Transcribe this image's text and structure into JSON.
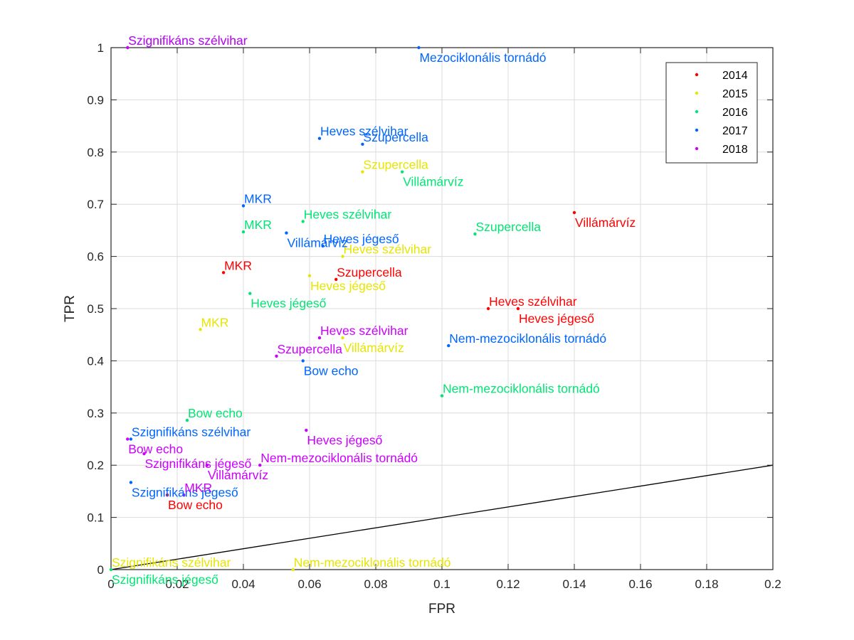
{
  "chart_data": {
    "type": "scatter",
    "title": "",
    "xlabel": "FPR",
    "ylabel": "TPR",
    "xlim": [
      0,
      0.2
    ],
    "ylim": [
      0,
      1
    ],
    "xticks": [
      "0",
      "0.02",
      "0.04",
      "0.06",
      "0.08",
      "0.1",
      "0.12",
      "0.14",
      "0.16",
      "0.18",
      "0.2"
    ],
    "yticks": [
      "0",
      "0.1",
      "0.2",
      "0.3",
      "0.4",
      "0.5",
      "0.6",
      "0.7",
      "0.8",
      "0.9",
      "1"
    ],
    "grid": true,
    "legend_position": "top-right",
    "reference_line": {
      "x": [
        0,
        0.2
      ],
      "y": [
        0,
        0.2
      ],
      "color": "#000000"
    },
    "series": [
      {
        "name": "2014",
        "color": "#ff0000",
        "points": [
          {
            "x": 0.034,
            "y": 0.569,
            "label": "MKR"
          },
          {
            "x": 0.068,
            "y": 0.556,
            "label": "Szupercella"
          },
          {
            "x": 0.14,
            "y": 0.684,
            "label": "Villámárvíz"
          },
          {
            "x": 0.114,
            "y": 0.5,
            "label": "Heves szélvihar"
          },
          {
            "x": 0.123,
            "y": 0.5,
            "label": "Heves jégeső"
          },
          {
            "x": 0.017,
            "y": 0.143,
            "label": "Bow echo"
          }
        ]
      },
      {
        "name": "2015",
        "color": "#e6e600",
        "points": [
          {
            "x": 0.076,
            "y": 0.762,
            "label": "Szupercella"
          },
          {
            "x": 0.06,
            "y": 0.563,
            "label": "Heves jégeső"
          },
          {
            "x": 0.07,
            "y": 0.6,
            "label": "Heves szélvihar"
          },
          {
            "x": 0.027,
            "y": 0.46,
            "label": "MKR"
          },
          {
            "x": 0.07,
            "y": 0.444,
            "label": "Villámárvíz"
          },
          {
            "x": 0.0,
            "y": 0.0,
            "label": "Szignifikáns szélvihar"
          },
          {
            "x": 0.055,
            "y": 0.0,
            "label": "Nem-mezociklonális tornádó"
          }
        ]
      },
      {
        "name": "2016",
        "color": "#00e673",
        "points": [
          {
            "x": 0.005,
            "y": 1.0,
            "label": "Szignifikáns szélvihar"
          },
          {
            "x": 0.088,
            "y": 0.762,
            "label": "Villámárvíz"
          },
          {
            "x": 0.058,
            "y": 0.667,
            "label": "Heves szélvihar"
          },
          {
            "x": 0.04,
            "y": 0.647,
            "label": "MKR"
          },
          {
            "x": 0.11,
            "y": 0.643,
            "label": "Szupercella"
          },
          {
            "x": 0.042,
            "y": 0.529,
            "label": "Heves jégeső"
          },
          {
            "x": 0.1,
            "y": 0.333,
            "label": "Nem-mezociklonális tornádó"
          },
          {
            "x": 0.023,
            "y": 0.286,
            "label": "Bow echo"
          },
          {
            "x": 0.0,
            "y": 0.0,
            "label": "Szignifikáns jégeső"
          }
        ]
      },
      {
        "name": "2017",
        "color": "#0066ff",
        "points": [
          {
            "x": 0.093,
            "y": 1.0,
            "label": "Mezociklonális tornádó"
          },
          {
            "x": 0.063,
            "y": 0.826,
            "label": "Heves szélvihar"
          },
          {
            "x": 0.076,
            "y": 0.815,
            "label": "Szupercella"
          },
          {
            "x": 0.04,
            "y": 0.697,
            "label": "MKR"
          },
          {
            "x": 0.053,
            "y": 0.645,
            "label": "Villámárvíz"
          },
          {
            "x": 0.064,
            "y": 0.62,
            "label": "Heves jégeső"
          },
          {
            "x": 0.102,
            "y": 0.429,
            "label": "Nem-mezociklonális tornádó"
          },
          {
            "x": 0.058,
            "y": 0.4,
            "label": "Bow echo"
          },
          {
            "x": 0.006,
            "y": 0.25,
            "label": "Szignifikáns szélvihar"
          },
          {
            "x": 0.006,
            "y": 0.167,
            "label": "Szignifikáns jégeső"
          }
        ]
      },
      {
        "name": "2018",
        "color": "#cc00ff",
        "points": [
          {
            "x": 0.005,
            "y": 1.0,
            "label": "Szignifikáns szélvihar"
          },
          {
            "x": 0.063,
            "y": 0.444,
            "label": "Heves szélvihar"
          },
          {
            "x": 0.05,
            "y": 0.409,
            "label": "Szupercella"
          },
          {
            "x": 0.059,
            "y": 0.267,
            "label": "Heves jégeső"
          },
          {
            "x": 0.005,
            "y": 0.25,
            "label": "Bow echo"
          },
          {
            "x": 0.01,
            "y": 0.222,
            "label": "Szignifikáns jégeső"
          },
          {
            "x": 0.045,
            "y": 0.2,
            "label": "Nem-mezociklonális tornádó"
          },
          {
            "x": 0.029,
            "y": 0.2,
            "label": "Villámárvíz"
          },
          {
            "x": 0.022,
            "y": 0.143,
            "label": "MKR"
          }
        ]
      }
    ]
  }
}
